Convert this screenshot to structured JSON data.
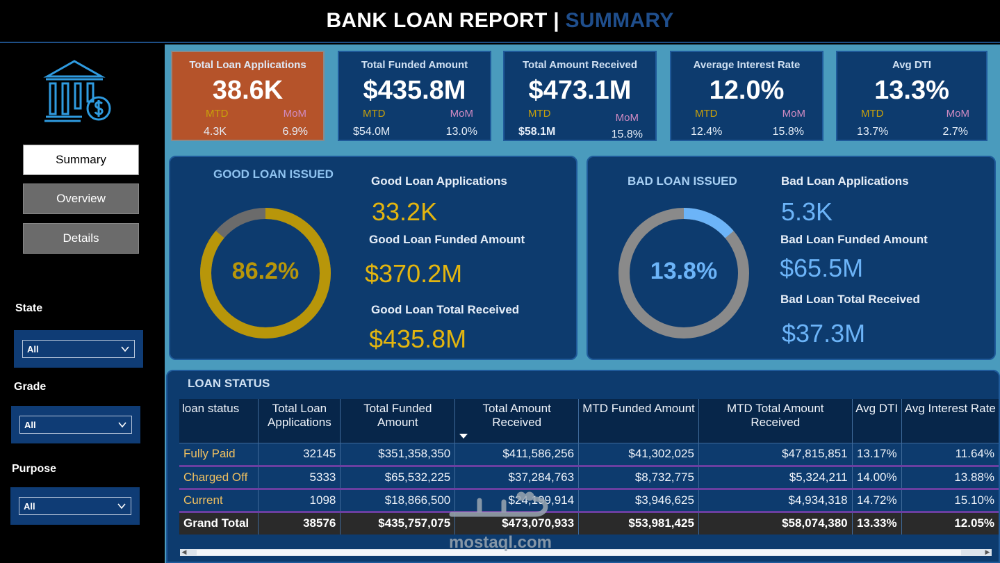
{
  "header": {
    "title": "BANK LOAN REPORT | ",
    "accent": "SUMMARY"
  },
  "sidebar": {
    "nav": [
      {
        "label": "Summary"
      },
      {
        "label": "Overview"
      },
      {
        "label": "Details"
      }
    ],
    "filters": [
      {
        "label": "State",
        "value": "All"
      },
      {
        "label": "Grade",
        "value": "All"
      },
      {
        "label": "Purpose",
        "value": "All"
      }
    ]
  },
  "kpis": [
    {
      "title": "Total Loan Applications",
      "value": "38.6K",
      "mtd_label": "MTD",
      "mom_label": "MoM",
      "mtd": "4.3K",
      "mom": "6.9%"
    },
    {
      "title": "Total Funded Amount",
      "value": "$435.8M",
      "mtd_label": "MTD",
      "mom_label": "MoM",
      "mtd": "$54.0M",
      "mom": "13.0%"
    },
    {
      "title": "Total Amount Received",
      "value": "$473.1M",
      "mtd_label": "MTD",
      "mom_label": "MoM",
      "mtd": "$58.1M",
      "mom": "15.8%"
    },
    {
      "title": "Average Interest Rate",
      "value": "12.0%",
      "mtd_label": "MTD",
      "mom_label": "MoM",
      "mtd": "12.4%",
      "mom": "15.8%"
    },
    {
      "title": "Avg DTI",
      "value": "13.3%",
      "mtd_label": "MTD",
      "mom_label": "MoM",
      "mtd": "13.7%",
      "mom": "2.7%"
    }
  ],
  "good_loan": {
    "title": "GOOD LOAN ISSUED",
    "percent": "86.2%",
    "fraction": 0.862,
    "apps_label": "Good Loan Applications",
    "apps": "33.2K",
    "funded_label": "Good Loan Funded Amount",
    "funded": "$370.2M",
    "received_label": "Good Loan Total Received",
    "received": "$435.8M",
    "color": "#b8960a"
  },
  "bad_loan": {
    "title": "BAD LOAN ISSUED",
    "percent": "13.8%",
    "fraction": 0.138,
    "apps_label": "Bad Loan Applications",
    "apps": "5.3K",
    "funded_label": "Bad Loan Funded Amount",
    "funded": "$65.5M",
    "received_label": "Bad Loan Total Received",
    "received": "$37.3M",
    "color": "#6cb4f8"
  },
  "loan_status": {
    "title": "LOAN STATUS",
    "columns": [
      "loan status",
      "Total Loan Applications",
      "Total Funded Amount",
      "Total Amount Received",
      "MTD Funded Amount",
      "MTD Total Amount Received",
      "Avg DTI",
      "Avg Interest Rate"
    ],
    "rows": [
      [
        "Fully Paid",
        "32145",
        "$351,358,350",
        "$411,586,256",
        "$41,302,025",
        "$47,815,851",
        "13.17%",
        "11.64%"
      ],
      [
        "Charged Off",
        "5333",
        "$65,532,225",
        "$37,284,763",
        "$8,732,775",
        "$5,324,211",
        "14.00%",
        "13.88%"
      ],
      [
        "Current",
        "1098",
        "$18,866,500",
        "$24,199,914",
        "$3,946,625",
        "$4,934,318",
        "14.72%",
        "15.10%"
      ]
    ],
    "total": [
      "Grand Total",
      "38576",
      "$435,757,075",
      "$473,070,933",
      "$53,981,425",
      "$58,074,380",
      "13.33%",
      "12.05%"
    ]
  },
  "watermark": {
    "text": "mostaql.com"
  }
}
